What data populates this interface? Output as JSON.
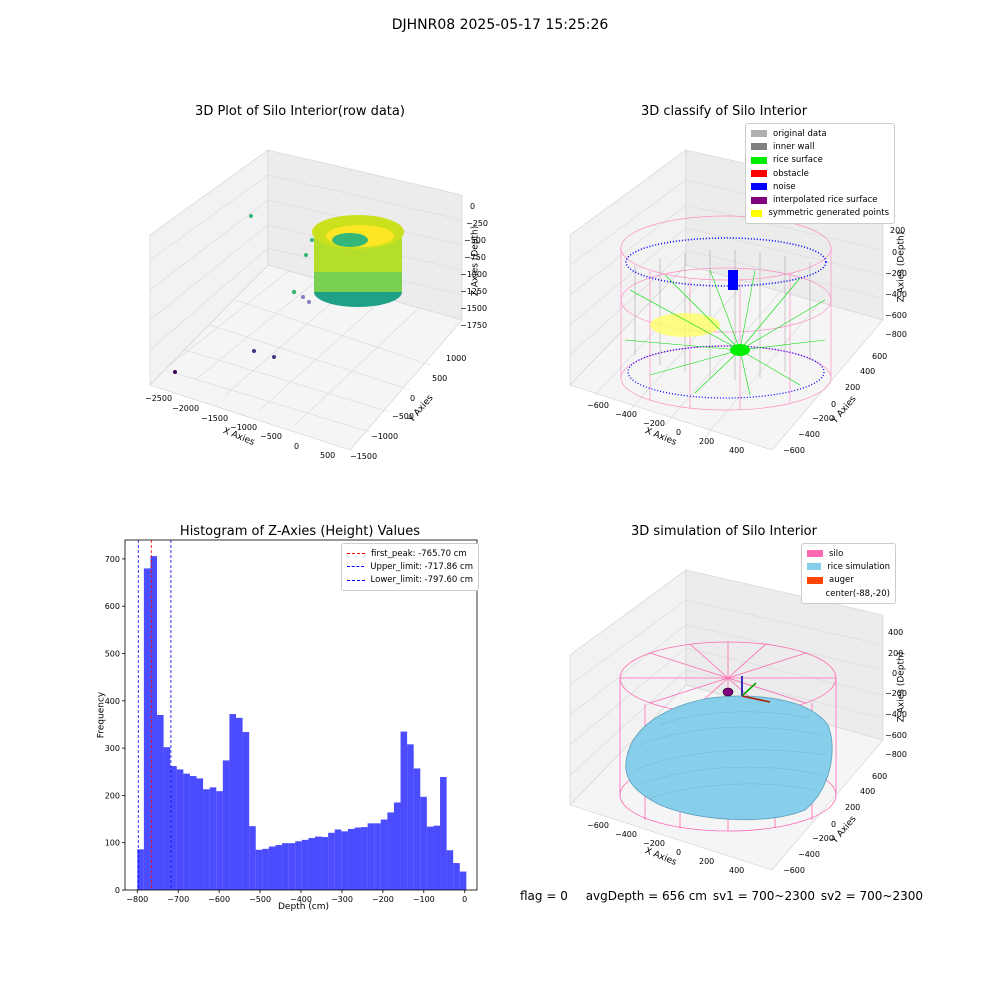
{
  "suptitle": "DJHNR08 2025-05-17 15:25:26",
  "status": {
    "flag": "flag = 0",
    "avg_depth": "avgDepth = 656 cm",
    "sv1": "sv1 = 700~2300",
    "sv2": "sv2 = 700~2300"
  },
  "panels": {
    "raw": {
      "title": "3D Plot of Silo Interior(row data)",
      "xlabel": "X Axies",
      "ylabel": "Y Axies",
      "zlabel": "Z Axies (Depth)",
      "xticks": [
        "−2500",
        "−2000",
        "−1500",
        "−1000",
        "−500",
        "0",
        "500"
      ],
      "yticks": [
        "1000",
        "500",
        "0",
        "−500",
        "−1000",
        "−1500"
      ],
      "zticks": [
        "0",
        "−250",
        "−500",
        "−750",
        "−1000",
        "−1250",
        "−1500",
        "−1750"
      ]
    },
    "classify": {
      "title": "3D classify of Silo Interior",
      "xlabel": "X Axies",
      "ylabel": "Y Axies",
      "zlabel": "Z Axies (Depth)",
      "xticks": [
        "−600",
        "−400",
        "−200",
        "0",
        "200",
        "400"
      ],
      "yticks": [
        "600",
        "400",
        "200",
        "0",
        "−200",
        "−400",
        "−600"
      ],
      "zticks": [
        "200",
        "0",
        "−200",
        "−400",
        "−600",
        "−800"
      ],
      "legend": [
        {
          "label": "original data",
          "color": "#b0b0b0"
        },
        {
          "label": "inner wall",
          "color": "#808080"
        },
        {
          "label": "rice surface",
          "color": "#00ee00"
        },
        {
          "label": "obstacle",
          "color": "#ff0000"
        },
        {
          "label": "noise",
          "color": "#0000ff"
        },
        {
          "label": "interpolated rice surface",
          "color": "#800080"
        },
        {
          "label": "symmetric generated points",
          "color": "#ffff00"
        }
      ]
    },
    "simulation": {
      "title": "3D simulation of Silo Interior",
      "xlabel": "X Axies",
      "ylabel": "Y Axies",
      "zlabel": "Z Axies (Depth)",
      "xticks": [
        "−600",
        "−400",
        "−200",
        "0",
        "200",
        "400"
      ],
      "yticks": [
        "600",
        "400",
        "200",
        "0",
        "−200",
        "−400",
        "−600"
      ],
      "zticks": [
        "400",
        "200",
        "0",
        "−200",
        "−400",
        "−600",
        "−800"
      ],
      "legend": [
        {
          "label": "silo",
          "color": "#ff69b4"
        },
        {
          "label": "rice simulation",
          "color": "#87ceeb"
        },
        {
          "label": "auger",
          "color": "#ff4500"
        },
        {
          "label": "center(-88,-20)",
          "color": ""
        }
      ]
    }
  },
  "chart_data": {
    "type": "bar",
    "title": "Histogram of Z-Axies (Height) Values",
    "xlabel": "Depth (cm)",
    "ylabel": "Frequency",
    "xlim": [
      -830,
      30
    ],
    "ylim": [
      0,
      740
    ],
    "xticks": [
      -800,
      -700,
      -600,
      -500,
      -400,
      -300,
      -200,
      -100,
      0
    ],
    "yticks": [
      0,
      100,
      200,
      300,
      400,
      500,
      600,
      700
    ],
    "bin_width": 16.08,
    "bin_start": -800,
    "values": [
      86,
      680,
      706,
      370,
      302,
      262,
      255,
      246,
      241,
      236,
      213,
      217,
      209,
      274,
      372,
      364,
      334,
      135,
      85,
      87,
      92,
      95,
      99,
      99,
      103,
      106,
      110,
      113,
      112,
      121,
      128,
      124,
      129,
      132,
      133,
      141,
      141,
      149,
      164,
      185,
      335,
      308,
      257,
      197,
      134,
      136,
      239,
      84,
      57,
      39
    ],
    "bar_color": "#0000ff",
    "lines": [
      {
        "label": "first_peak: -765.70 cm",
        "x": -765.7,
        "color": "#ff0000"
      },
      {
        "label": "Upper_limit: -717.86 cm",
        "x": -717.86,
        "color": "#0000ff"
      },
      {
        "label": "Lower_limit: -797.60 cm",
        "x": -797.6,
        "color": "#0000ff"
      }
    ]
  }
}
